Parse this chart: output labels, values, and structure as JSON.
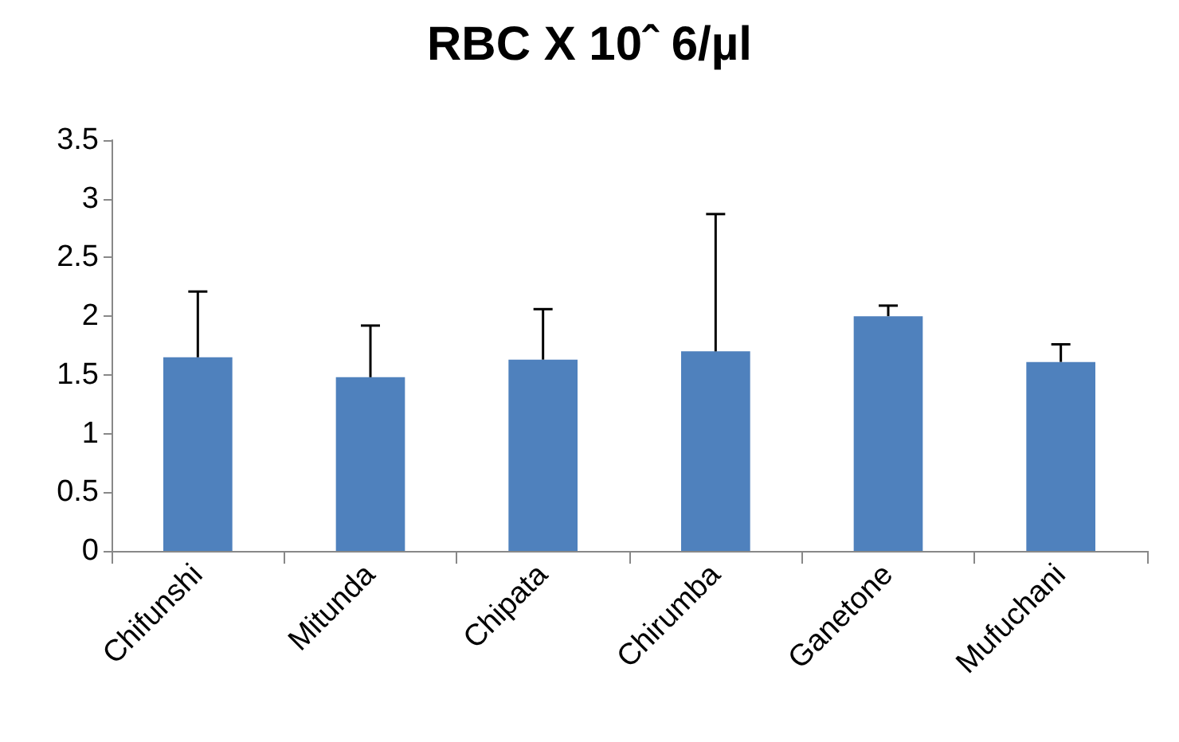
{
  "chart_data": {
    "type": "bar",
    "title": "RBC X 10ˆ 6/µl",
    "categories": [
      "Chifunshi",
      "Mitunda",
      "Chipata",
      "Chirumba",
      "Ganetone",
      "Mufuchani"
    ],
    "values": [
      1.65,
      1.48,
      1.63,
      1.7,
      2.0,
      1.61
    ],
    "errors": [
      [
        1.65,
        2.21
      ],
      [
        1.48,
        1.92
      ],
      [
        1.63,
        2.06
      ],
      [
        1.7,
        2.87
      ],
      [
        2.0,
        2.09
      ],
      [
        1.61,
        1.76
      ]
    ],
    "color": "#4f81bd",
    "ylim": [
      0,
      3.5
    ],
    "yticks": [
      0,
      0.5,
      1,
      1.5,
      2,
      2.5,
      3,
      3.5
    ],
    "grid": false
  }
}
